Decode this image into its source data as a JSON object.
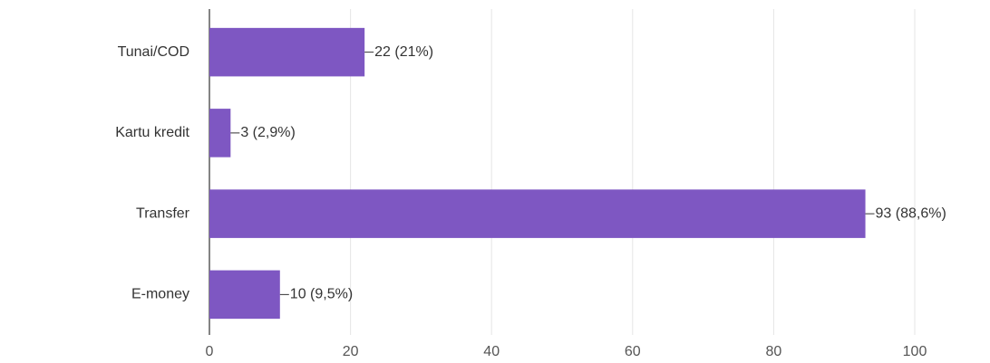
{
  "chart_data": {
    "type": "bar",
    "orientation": "horizontal",
    "categories": [
      "Tunai/COD",
      "Kartu kredit",
      "Transfer",
      "E-money"
    ],
    "values": [
      22,
      3,
      93,
      10
    ],
    "value_labels": [
      "22 (21%)",
      "3 (2,9%)",
      "93 (88,6%)",
      "10 (9,5%)"
    ],
    "color": "#7e57c2",
    "xlim": [
      0,
      100
    ],
    "xticks": [
      0,
      20,
      40,
      60,
      80,
      100
    ],
    "grid": true
  }
}
